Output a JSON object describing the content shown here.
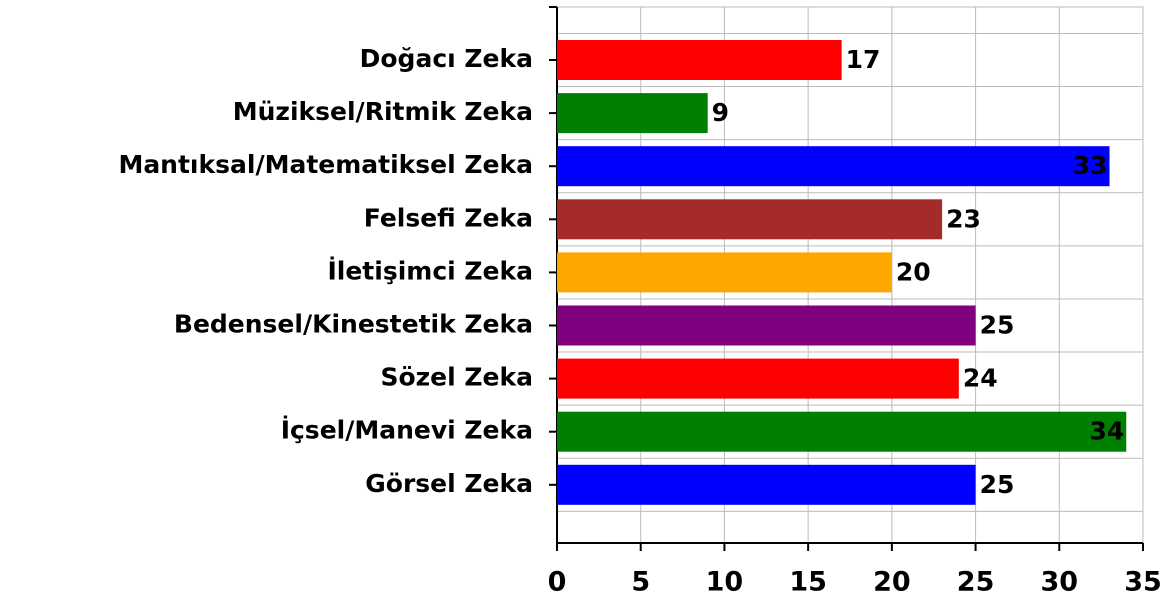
{
  "chart_data": {
    "type": "bar",
    "orientation": "horizontal",
    "categories": [
      "Doğacı Zeka",
      "Müziksel/Ritmik Zeka",
      "Mantıksal/Matematiksel Zeka",
      "Felsefi Zeka",
      "İletişimci Zeka",
      "Bedensel/Kinestetik Zeka",
      "Sözel Zeka",
      "İçsel/Manevi Zeka",
      "Görsel Zeka"
    ],
    "values": [
      17,
      9,
      33,
      23,
      20,
      25,
      24,
      34,
      25
    ],
    "colors": [
      "#ff0000",
      "#008000",
      "#0000ff",
      "#a52a2a",
      "#ffa500",
      "#800080",
      "#ff0000",
      "#008000",
      "#0000ff"
    ],
    "xlim": [
      0,
      35
    ],
    "xticks": [
      0,
      5,
      10,
      15,
      20,
      25,
      30,
      35
    ],
    "grid": true
  }
}
